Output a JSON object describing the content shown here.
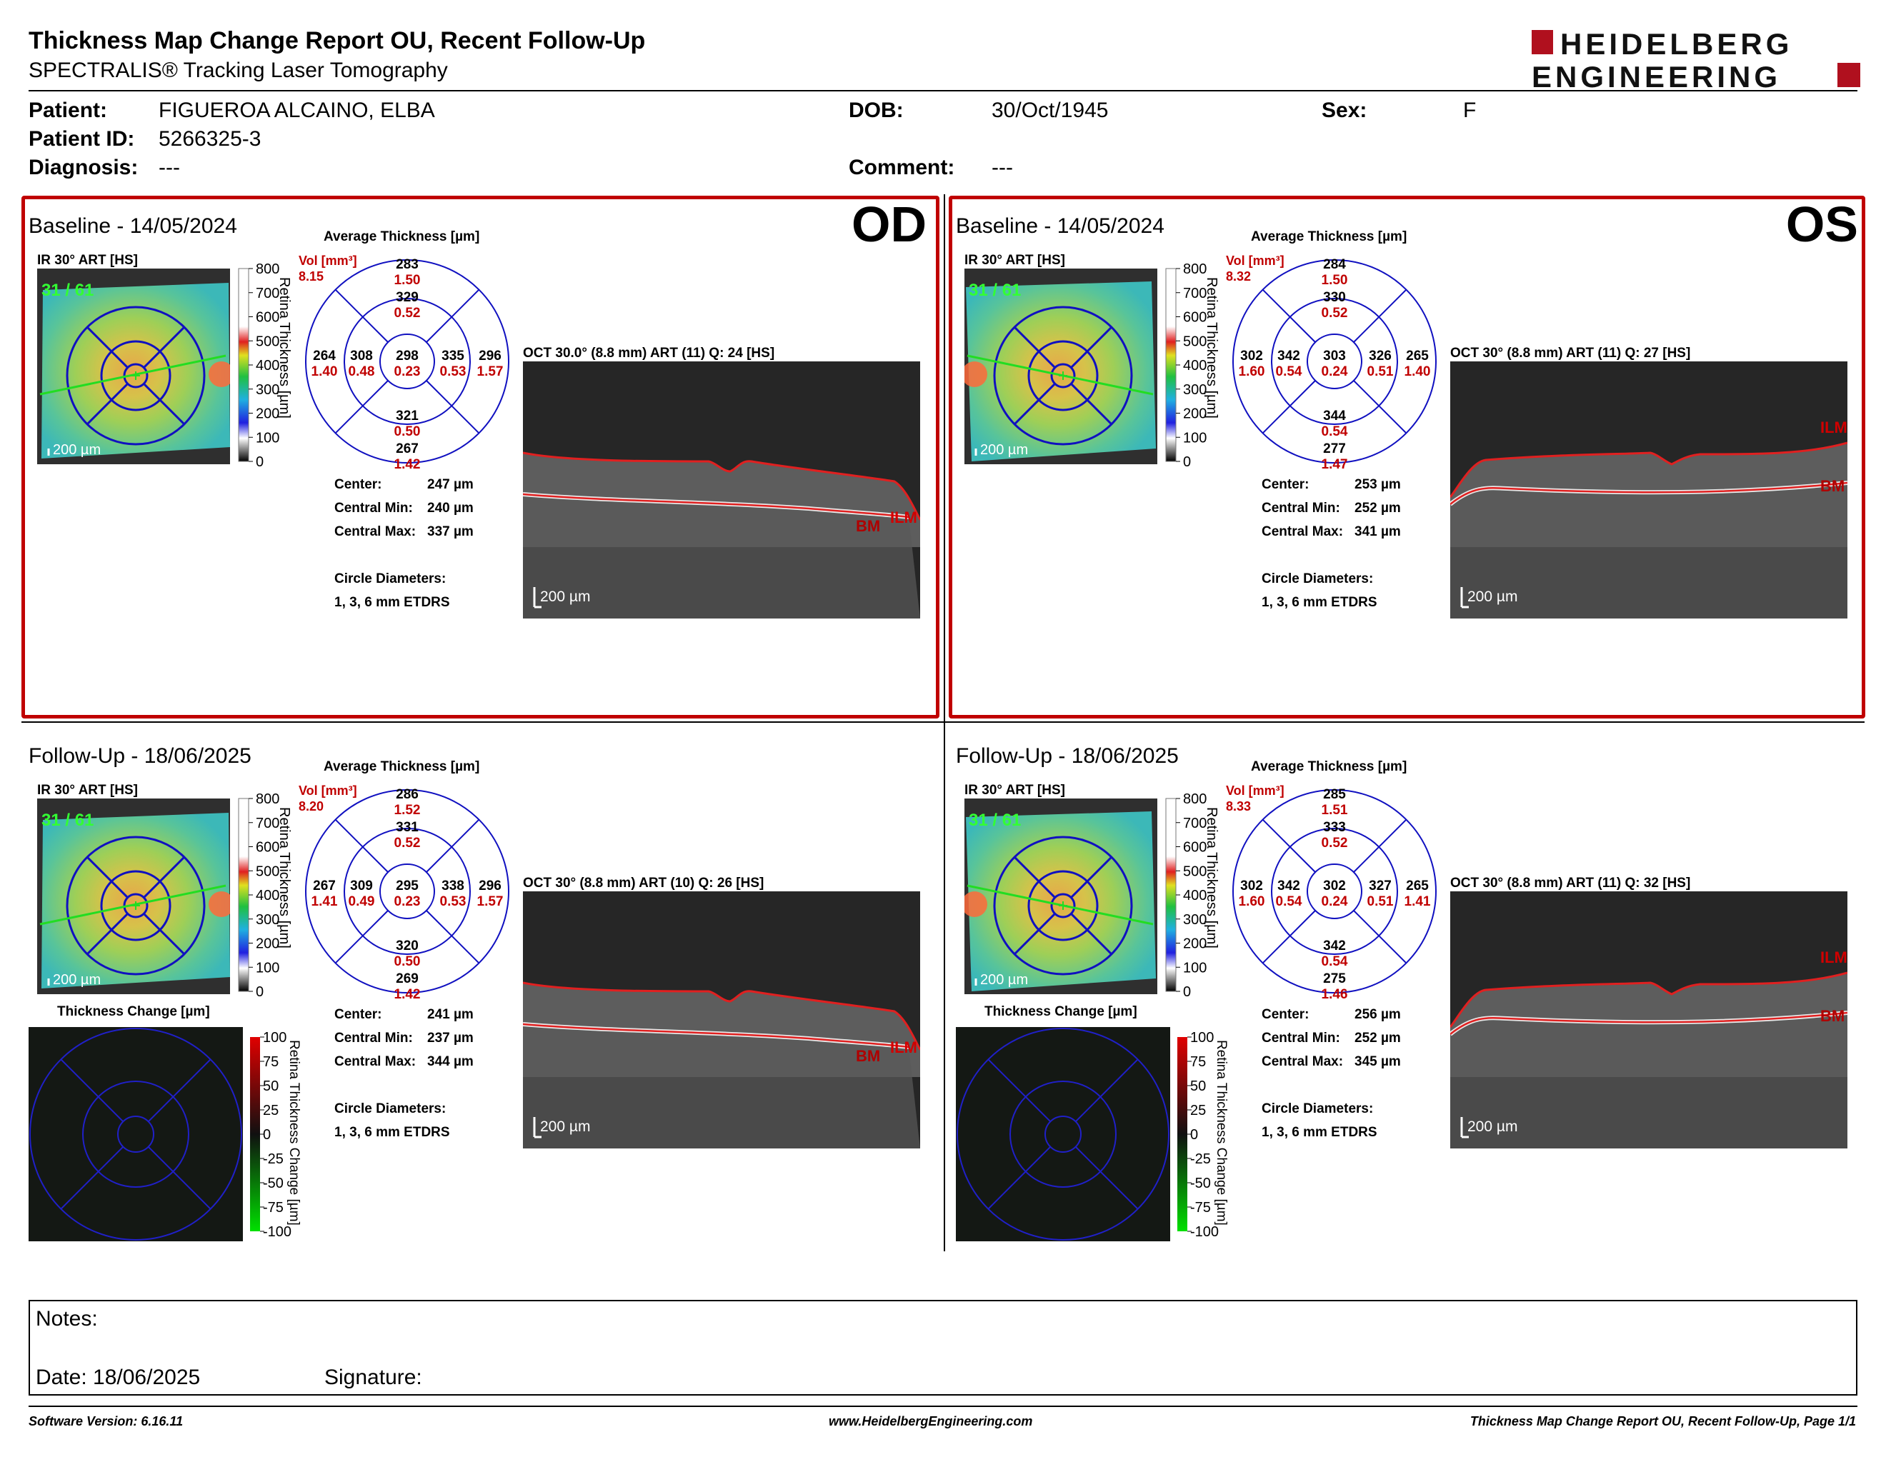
{
  "header": {
    "title": "Thickness Map Change Report OU, Recent Follow-Up",
    "subtitle": "SPECTRALIS® Tracking Laser Tomography",
    "logo_line1": "HEIDELBERG",
    "logo_line2": "ENGINEERING"
  },
  "patient": {
    "patient_label": "Patient:",
    "patient_value": "FIGUEROA ALCAINO, ELBA",
    "dob_label": "DOB:",
    "dob_value": "30/Oct/1945",
    "sex_label": "Sex:",
    "sex_value": "F",
    "id_label": "Patient ID:",
    "id_value": "5266325-3",
    "diagnosis_label": "Diagnosis:",
    "diagnosis_value": "---",
    "comment_label": "Comment:",
    "comment_value": "---"
  },
  "common": {
    "avg_thickness": "Average Thickness [µm]",
    "vol_label": "Vol [mm³]",
    "ir_label": "IR 30° ART [HS]",
    "ir_scale": "200 µm",
    "oct_scale": "200 µm",
    "colorbar_ticks": [
      "800",
      "700",
      "600",
      "500",
      "400",
      "300",
      "200",
      "100",
      "0"
    ],
    "colorbar_title": "Retina Thickness [µm]",
    "center_label": "Center:",
    "cmin_label": "Central Min:",
    "cmax_label": "Central Max:",
    "circle_label": "Circle Diameters:",
    "circle_value": "1, 3, 6 mm ETDRS",
    "change_title": "Thickness Change [µm]",
    "change_ticks": [
      "100",
      "75",
      "50",
      "25",
      "0",
      "-25",
      "-50",
      "-75",
      "-100"
    ],
    "change_bar_title": "Retina Thickness Change [µm]",
    "ilm": "ILM",
    "bm": "BM"
  },
  "od": {
    "eye": "OD",
    "baseline": {
      "title": "Baseline - 14/05/2024",
      "fix": "31 / 61",
      "vol_total": "8.15",
      "thk": [
        "298",
        "283",
        "296",
        "267",
        "264",
        "329",
        "335",
        "321",
        "308"
      ],
      "vol": [
        "0.23",
        "1.50",
        "1.57",
        "1.42",
        "1.40",
        "0.52",
        "0.53",
        "0.50",
        "0.48"
      ],
      "center": "247 µm",
      "cmin": "240 µm",
      "cmax": "337 µm",
      "oct_label": "OCT 30.0° (8.8 mm) ART (11) Q: 24 [HS]"
    },
    "followup": {
      "title": "Follow-Up - 18/06/2025",
      "fix": "31 / 61",
      "vol_total": "8.20",
      "thk": [
        "295",
        "286",
        "296",
        "269",
        "267",
        "331",
        "338",
        "320",
        "309"
      ],
      "vol": [
        "0.23",
        "1.52",
        "1.57",
        "1.42",
        "1.41",
        "0.52",
        "0.53",
        "0.50",
        "0.49"
      ],
      "center": "241 µm",
      "cmin": "237 µm",
      "cmax": "344 µm",
      "oct_label": "OCT 30° (8.8 mm) ART (10) Q: 26 [HS]"
    }
  },
  "os": {
    "eye": "OS",
    "baseline": {
      "title": "Baseline - 14/05/2024",
      "fix": "31 / 61",
      "vol_total": "8.32",
      "thk": [
        "303",
        "284",
        "265",
        "277",
        "302",
        "330",
        "326",
        "344",
        "342"
      ],
      "vol": [
        "0.24",
        "1.50",
        "1.40",
        "1.47",
        "1.60",
        "0.52",
        "0.51",
        "0.54",
        "0.54"
      ],
      "center": "253 µm",
      "cmin": "252 µm",
      "cmax": "341 µm",
      "oct_label": "OCT 30° (8.8 mm) ART (11) Q: 27 [HS]"
    },
    "followup": {
      "title": "Follow-Up - 18/06/2025",
      "fix": "31 / 61",
      "vol_total": "8.33",
      "thk": [
        "302",
        "285",
        "265",
        "275",
        "302",
        "333",
        "327",
        "342",
        "342"
      ],
      "vol": [
        "0.24",
        "1.51",
        "1.41",
        "1.46",
        "1.60",
        "0.52",
        "0.51",
        "0.54",
        "0.54"
      ],
      "center": "256 µm",
      "cmin": "252 µm",
      "cmax": "345 µm",
      "oct_label": "OCT 30° (8.8 mm) ART (11) Q: 32 [HS]"
    }
  },
  "notes": {
    "notes_label": "Notes:",
    "date_label": "Date: 18/06/2025",
    "signature_label": "Signature:"
  },
  "footer": {
    "software": "Software Version: 6.16.11",
    "website": "www.HeidelbergEngineering.com",
    "page": "Thickness Map Change Report OU, Recent Follow-Up, Page 1/1"
  },
  "colors": {
    "frame_red": "#c00000",
    "etdrs_blue": "#1010c0",
    "ilm_line": "#e02020",
    "logo_red": "#b0101e"
  }
}
